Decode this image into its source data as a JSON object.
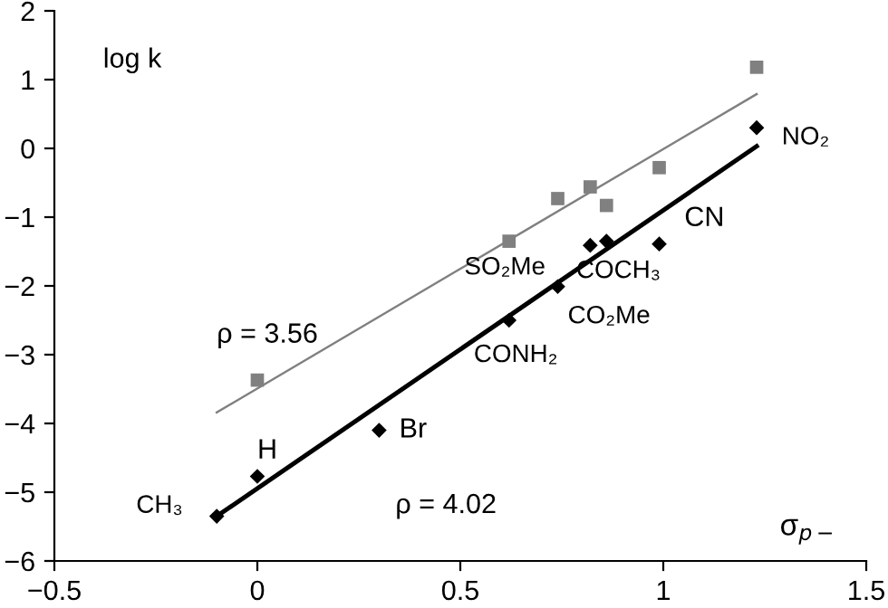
{
  "chart_data": {
    "type": "scatter",
    "xlabel": "σ$_{p−}$",
    "ylabel": "log k",
    "xlim": [
      -0.5,
      1.5
    ],
    "ylim": [
      -6,
      2
    ],
    "xticks": [
      -0.5,
      0,
      0.5,
      1,
      1.5
    ],
    "yticks": [
      -6,
      -5,
      -4,
      -3,
      -2,
      -1,
      0,
      1,
      2
    ],
    "grid": false,
    "series": [
      {
        "marker": "square",
        "color": "#808080",
        "x": [
          0,
          0.62,
          0.74,
          0.82,
          0.86,
          0.99,
          1.23
        ],
        "values": [
          -3.37,
          -1.35,
          -0.73,
          -0.56,
          -0.83,
          -0.28,
          1.18
        ]
      },
      {
        "marker": "diamond",
        "color": "#000000",
        "x": [
          -0.1,
          0,
          0.3,
          0.62,
          0.74,
          0.82,
          0.86,
          0.99,
          1.23
        ],
        "values": [
          -5.35,
          -4.77,
          -4.1,
          -2.5,
          -2.01,
          -1.41,
          -1.35,
          -1.39,
          0.3
        ]
      },
      {
        "type": "line",
        "marker": "none",
        "color": "#808080",
        "x": [
          -0.1,
          1.23
        ],
        "values": [
          -3.84,
          0.79
        ]
      },
      {
        "type": "line",
        "marker": "none",
        "color": "#000000",
        "x": [
          -0.1,
          1.23
        ],
        "values": [
          -5.35,
          0.03
        ]
      }
    ],
    "annotations": [
      {
        "text": "CH₃",
        "x": -0.1,
        "y": -5.35
      },
      {
        "text": "H",
        "x": 0,
        "y": -4.77
      },
      {
        "text": "Br",
        "x": 0.3,
        "y": -4.1
      },
      {
        "text": "CONH₂",
        "x": 0.62,
        "y": -2.5
      },
      {
        "text": "CO₂Me",
        "x": 0.74,
        "y": -2.01
      },
      {
        "text": "SO₂Me",
        "x": 0.82,
        "y": -1.41
      },
      {
        "text": "COCH₃",
        "x": 0.86,
        "y": -1.35
      },
      {
        "text": "CN",
        "x": 0.99,
        "y": -1.39
      },
      {
        "text": "NO₂",
        "x": 1.23,
        "y": 0.3
      },
      "ρ = 3.56",
      "ρ = 4.02"
    ]
  }
}
